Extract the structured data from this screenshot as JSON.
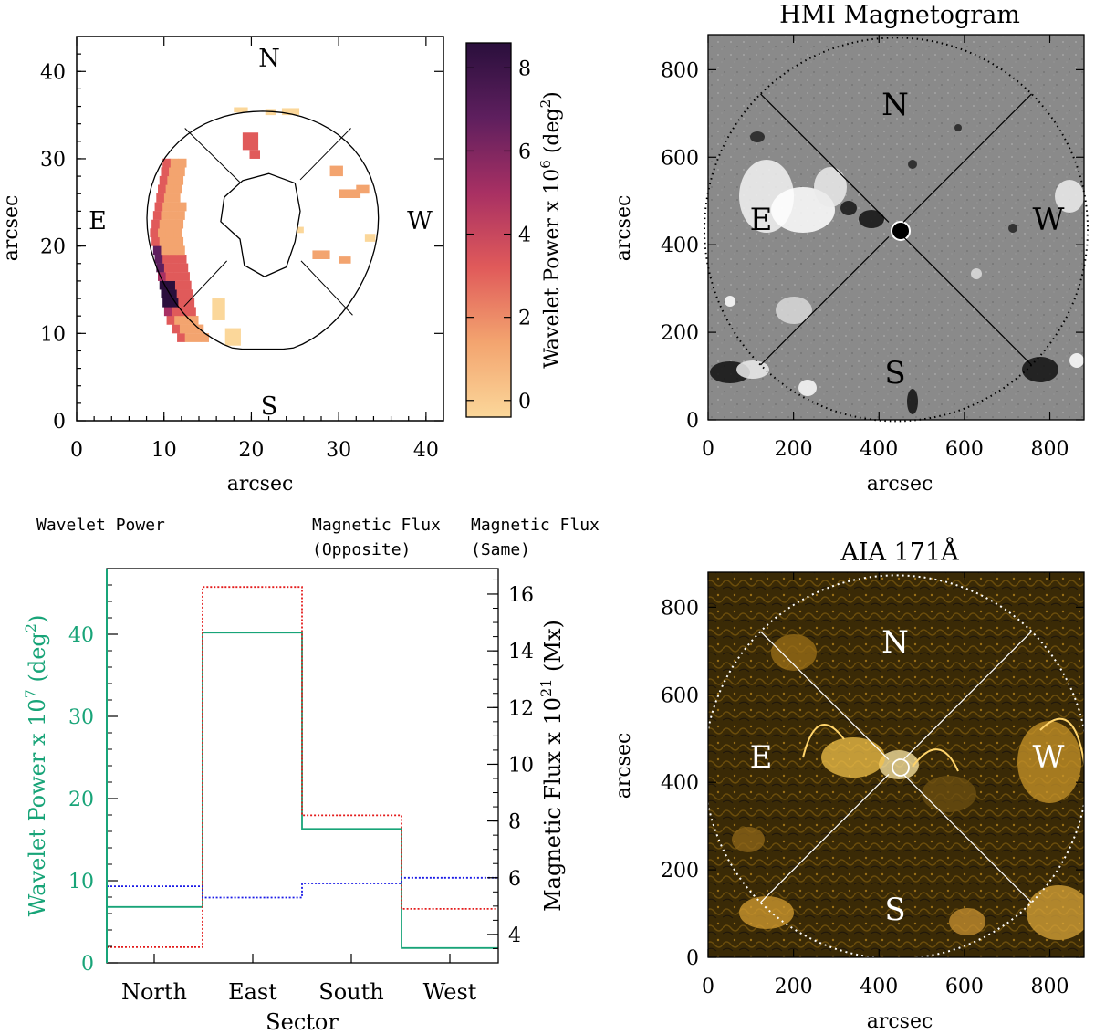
{
  "colors": {
    "wavelet": "#18a478",
    "opposite": "#e31b1b",
    "same": "#1a1ae6",
    "line": "#000000"
  },
  "panels": {
    "wavelet_map": {
      "xlabel": "arcsec",
      "ylabel": "arcsec",
      "xlim": [
        0,
        42
      ],
      "ylim": [
        0,
        44
      ],
      "xticks": [
        0,
        10,
        20,
        30,
        40
      ],
      "yticks": [
        0,
        10,
        20,
        30,
        40
      ],
      "directions": {
        "N": "N",
        "S": "S",
        "E": "E",
        "W": "W"
      },
      "colorbar": {
        "label_prefix": "Wavelet Power x 10",
        "label_exp": "6",
        "label_suffix": " (deg",
        "label_sq": "2",
        "label_end": ")",
        "range": [
          -0.4,
          8.6
        ],
        "ticks": [
          0,
          2,
          4,
          6,
          8
        ],
        "cmap": [
          "#fbd79a",
          "#f3a46f",
          "#e05a5a",
          "#a83063",
          "#5e1f5e",
          "#2a0f3c"
        ]
      }
    },
    "hmi": {
      "title": "HMI Magnetogram",
      "xlabel": "arcsec",
      "ylabel": "arcsec",
      "xlim": [
        0,
        880
      ],
      "ylim": [
        0,
        880
      ],
      "ticks": [
        0,
        200,
        400,
        600,
        800
      ],
      "directions": {
        "N": "N",
        "S": "S",
        "E": "E",
        "W": "W"
      }
    },
    "aia": {
      "title": "AIA 171Å",
      "xlabel": "arcsec",
      "ylabel": "arcsec",
      "xlim": [
        0,
        880
      ],
      "ylim": [
        0,
        880
      ],
      "ticks": [
        0,
        200,
        400,
        600,
        800
      ],
      "directions": {
        "N": "N",
        "S": "S",
        "E": "E",
        "W": "W"
      }
    }
  },
  "legend": {
    "wavelet": "Wavelet Power",
    "opposite_line1": "Magnetic Flux",
    "opposite_line2": "(Opposite)",
    "same_line1": "Magnetic Flux",
    "same_line2": "(Same)"
  },
  "chart_data": {
    "type": "step",
    "categories": [
      "North",
      "East",
      "South",
      "West"
    ],
    "xlabel": "Sector",
    "ylabel_left": {
      "prefix": "Wavelet Power x 10",
      "exp": "7",
      "suffix": " (deg",
      "sq": "2",
      "end": ")"
    },
    "ylabel_right": {
      "prefix": "Magnetic Flux x 10",
      "exp": "21",
      "suffix": " (Mx)"
    },
    "ylim_left": [
      0,
      48
    ],
    "yticks_left": [
      0,
      10,
      20,
      30,
      40
    ],
    "ylim_right": [
      3,
      16.9
    ],
    "yticks_right": [
      4,
      6,
      8,
      10,
      12,
      14,
      16
    ],
    "series": [
      {
        "name": "Wavelet Power",
        "axis": "left",
        "values": [
          6.8,
          40.2,
          16.3,
          1.8
        ]
      },
      {
        "name": "Magnetic Flux (Opposite)",
        "axis": "right",
        "values": [
          3.55,
          16.25,
          8.2,
          4.9
        ]
      },
      {
        "name": "Magnetic Flux (Same)",
        "axis": "right",
        "values": [
          5.7,
          5.3,
          5.8,
          6.0
        ]
      }
    ]
  }
}
